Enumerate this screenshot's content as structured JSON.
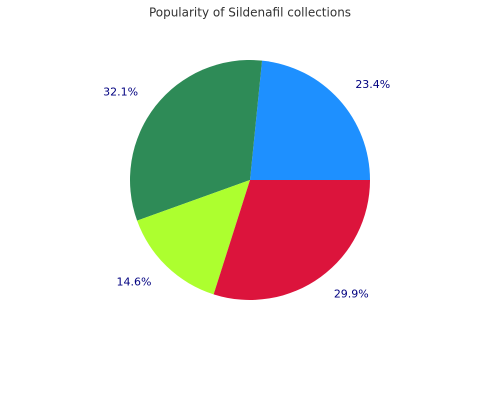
{
  "chart_data": {
    "type": "pie",
    "title": "Popularity of Sildenafil collections",
    "categories": [
      null,
      null,
      null,
      null
    ],
    "values": [
      23.4,
      32.1,
      14.6,
      29.9
    ],
    "value_labels": [
      "23.4%",
      "32.1%",
      "14.6%",
      "29.9%"
    ],
    "colors": [
      "#1e90ff",
      "#2e8b57",
      "#adff2f",
      "#dc143c"
    ]
  }
}
